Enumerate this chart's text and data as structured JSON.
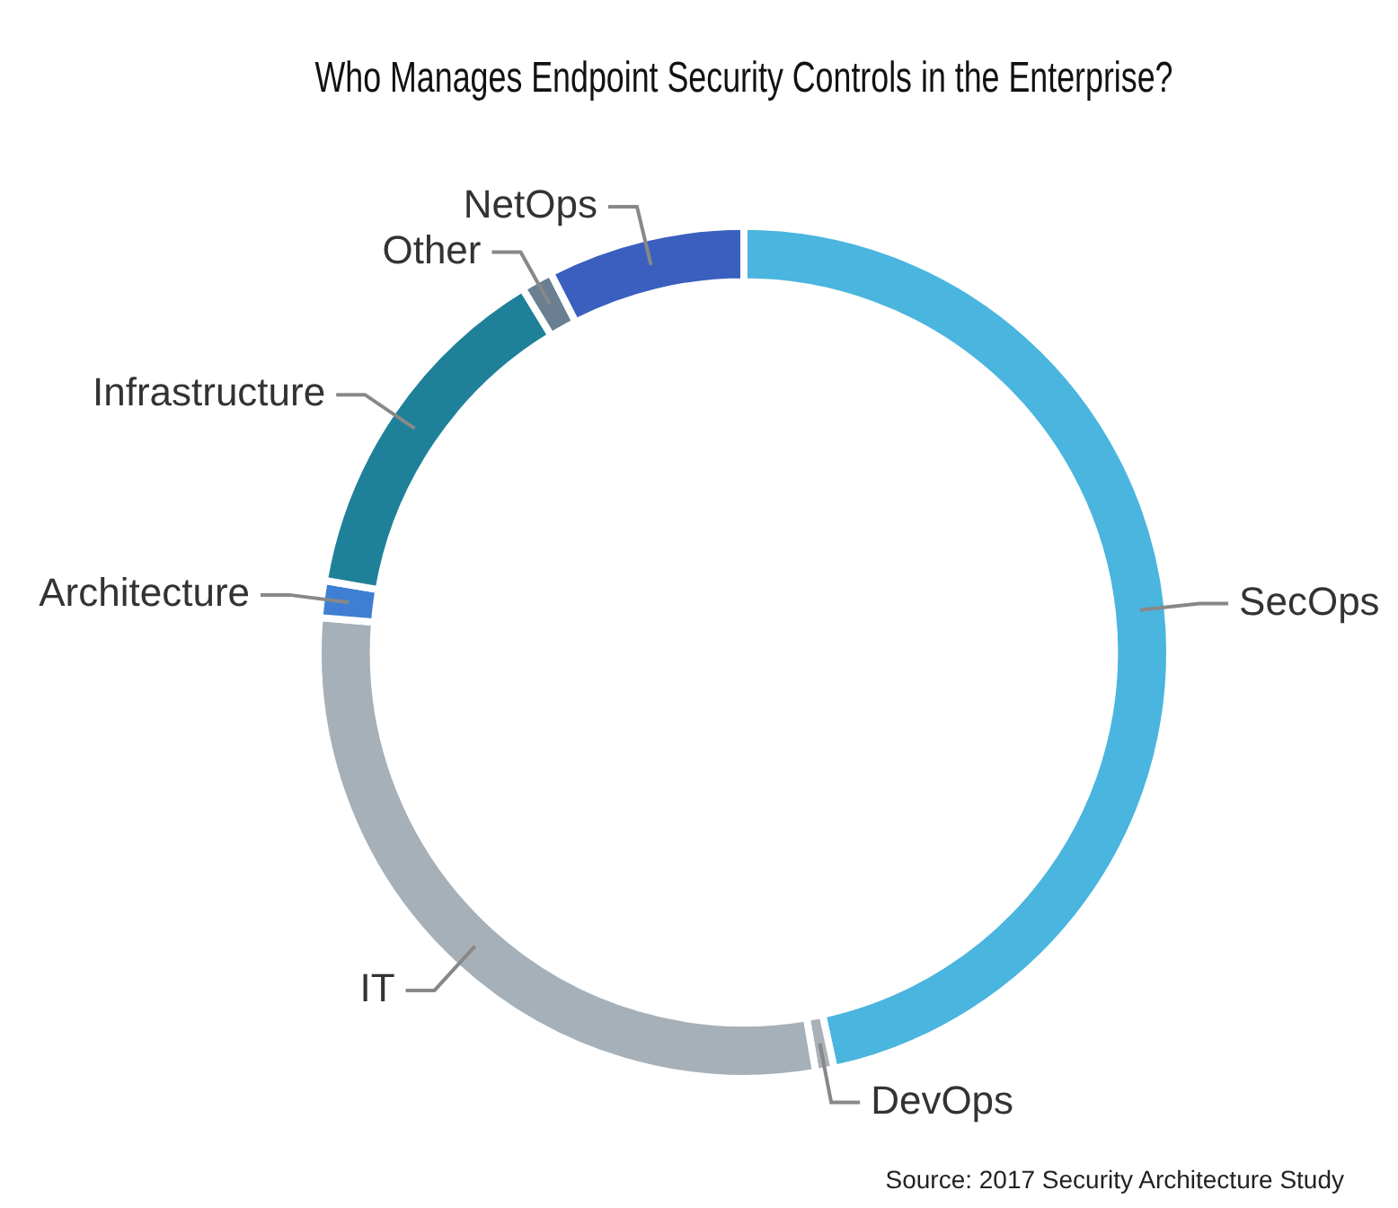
{
  "chart_data": {
    "type": "donut",
    "title": "Who Manages Endpoint Security Controls in the Enterprise?",
    "categories": [
      "SecOps",
      "DevOps",
      "IT",
      "Architecture",
      "Infrastructure",
      "Other",
      "NetOps"
    ],
    "values": [
      46.6,
      0.7,
      29,
      1.4,
      13.6,
      1.2,
      7.5
    ],
    "colors": [
      "#4ab5de",
      "#a8b0b8",
      "#a6b0b9",
      "#3f7fd3",
      "#1f8199",
      "#6b7f92",
      "#3a5fbf"
    ],
    "annotations": [
      "Source: 2017 Security Architecture Study"
    ]
  }
}
